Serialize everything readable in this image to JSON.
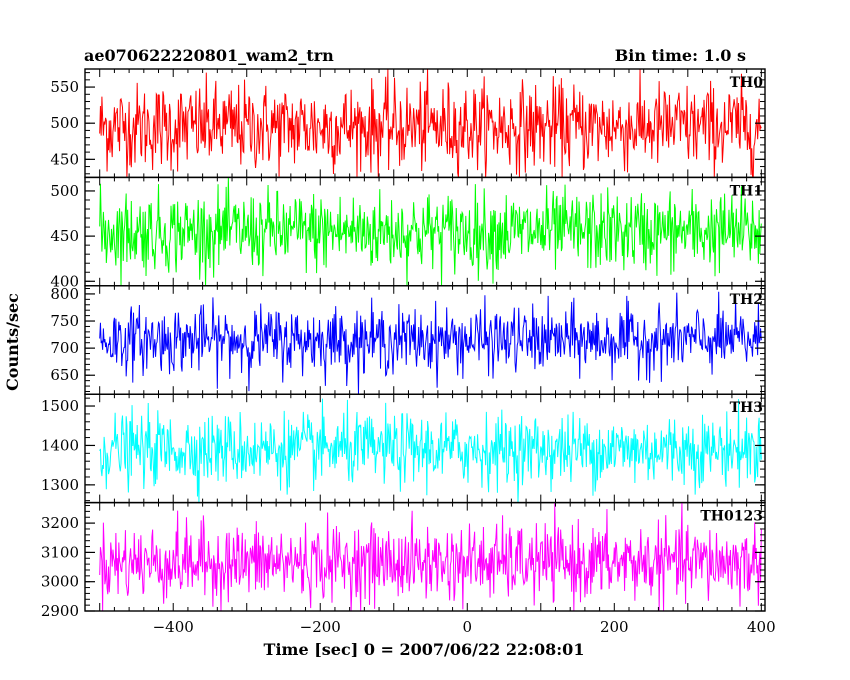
{
  "chart_data": {
    "type": "line",
    "title": "ae070622220801_wam2_trn",
    "subtitle": "Bin time: 1.0 s",
    "xlabel": "Time [sec] 0 = 2007/06/22 22:08:01",
    "ylabel": "Counts/sec",
    "xlim": [
      -520,
      405
    ],
    "x_range": [
      -500,
      400
    ],
    "xticks": [
      -400,
      -200,
      0,
      200,
      400
    ],
    "grid": false,
    "panels": [
      {
        "name": "TH0",
        "color": "#ff0000",
        "mean": 495,
        "sd": 30,
        "ylim": [
          425,
          575
        ],
        "yticks": [
          450,
          500,
          550
        ]
      },
      {
        "name": "TH1",
        "color": "#00ff00",
        "mean": 455,
        "sd": 22,
        "ylim": [
          395,
          515
        ],
        "yticks": [
          400,
          450,
          500
        ]
      },
      {
        "name": "TH2",
        "color": "#0000ff",
        "mean": 715,
        "sd": 30,
        "ylim": [
          615,
          815
        ],
        "yticks": [
          650,
          700,
          750,
          800
        ]
      },
      {
        "name": "TH3",
        "color": "#00ffff",
        "mean": 1390,
        "sd": 45,
        "ylim": [
          1255,
          1530
        ],
        "yticks": [
          1300,
          1400,
          1500
        ]
      },
      {
        "name": "TH0123",
        "color": "#ff00ff",
        "mean": 3065,
        "sd": 65,
        "ylim": [
          2900,
          3270
        ],
        "yticks": [
          2900,
          3000,
          3100,
          3200
        ]
      }
    ]
  }
}
